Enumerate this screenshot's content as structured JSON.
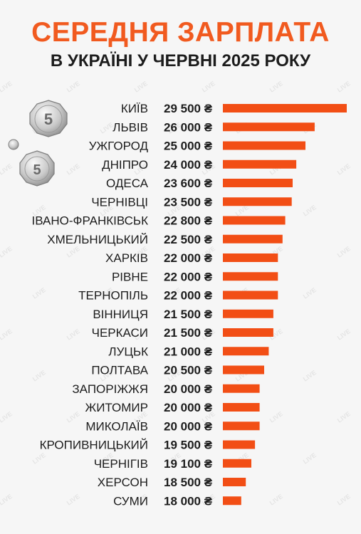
{
  "header": {
    "title": "СЕРЕДНЯ ЗАРПЛАТА",
    "subtitle": "В УКРАЇНІ У ЧЕРВНІ 2025 РОКУ"
  },
  "coins": {
    "value": "5"
  },
  "colors": {
    "accent": "#f15a1f",
    "text": "#1c1c1c",
    "bar": "#f24e15",
    "background": "#f6f6f6"
  },
  "chart_data": {
    "type": "bar",
    "orientation": "horizontal",
    "categories": [
      "КИЇВ",
      "ЛЬВІВ",
      "УЖГОРОД",
      "ДНІПРО",
      "ОДЕСА",
      "ЧЕРНІВЦІ",
      "ІВАНО-ФРАНКІВСЬК",
      "ХМЕЛЬНИЦЬКИЙ",
      "ХАРКІВ",
      "РІВНЕ",
      "ТЕРНОПІЛЬ",
      "ВІННИЦЯ",
      "ЧЕРКАСИ",
      "ЛУЦЬК",
      "ПОЛТАВА",
      "ЗАПОРІЖЖЯ",
      "ЖИТОМИР",
      "МИКОЛАЇВ",
      "КРОПИВНИЦЬКИЙ",
      "ЧЕРНІГІВ",
      "ХЕРСОН",
      "СУМИ"
    ],
    "values": [
      29500,
      26000,
      25000,
      24000,
      23600,
      23500,
      22800,
      22500,
      22000,
      22000,
      22000,
      21500,
      21500,
      21000,
      20500,
      20000,
      20000,
      20000,
      19500,
      19100,
      18500,
      18000
    ],
    "value_labels": [
      "29 500 ₴",
      "26 000 ₴",
      "25 000 ₴",
      "24 000 ₴",
      "23 600 ₴",
      "23 500 ₴",
      "22 800 ₴",
      "22 500 ₴",
      "22 000 ₴",
      "22 000 ₴",
      "22 000 ₴",
      "21 500 ₴",
      "21 500 ₴",
      "21 000 ₴",
      "20 500 ₴",
      "20 000 ₴",
      "20 000 ₴",
      "20 000 ₴",
      "19 500 ₴",
      "19 100 ₴",
      "18 500 ₴",
      "18 000 ₴"
    ],
    "title": "СЕРЕДНЯ ЗАРПЛАТА",
    "xlabel": "",
    "ylabel": "",
    "grid": false,
    "legend": "none"
  }
}
